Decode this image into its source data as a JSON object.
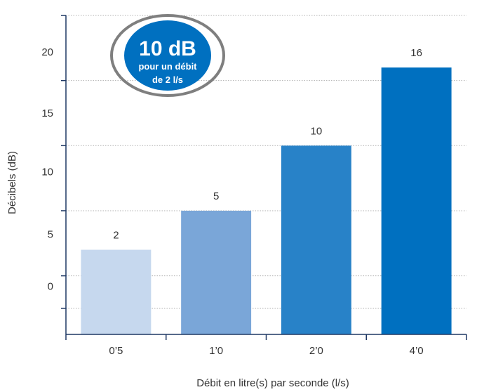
{
  "chart_data": {
    "type": "bar",
    "categories": [
      "0’5",
      "1’0",
      "2’0",
      "4’0"
    ],
    "values": [
      2,
      5,
      10,
      16
    ],
    "data_labels": [
      "2",
      "5",
      "10",
      "16"
    ],
    "bar_colors": [
      "#c6d8ee",
      "#7aa6d8",
      "#2882c8",
      "#0070c0"
    ],
    "xlabel": "Débit en litre(s) par seconde (l/s)",
    "ylabel": "Décibels (dB)",
    "y_tick_labels": [
      "0",
      "5",
      "10",
      "15",
      "20"
    ],
    "ylim": [
      -4.5,
      20
    ],
    "grid": "horizontal dotted",
    "badge": {
      "value": "10 dB",
      "line1": "pour un débit",
      "line2": "de 2 l/s",
      "fill": "#0070c0",
      "ring": "#7f7f7f"
    },
    "axis_color": "#1f3864",
    "grid_color": "#b0b0b0"
  }
}
